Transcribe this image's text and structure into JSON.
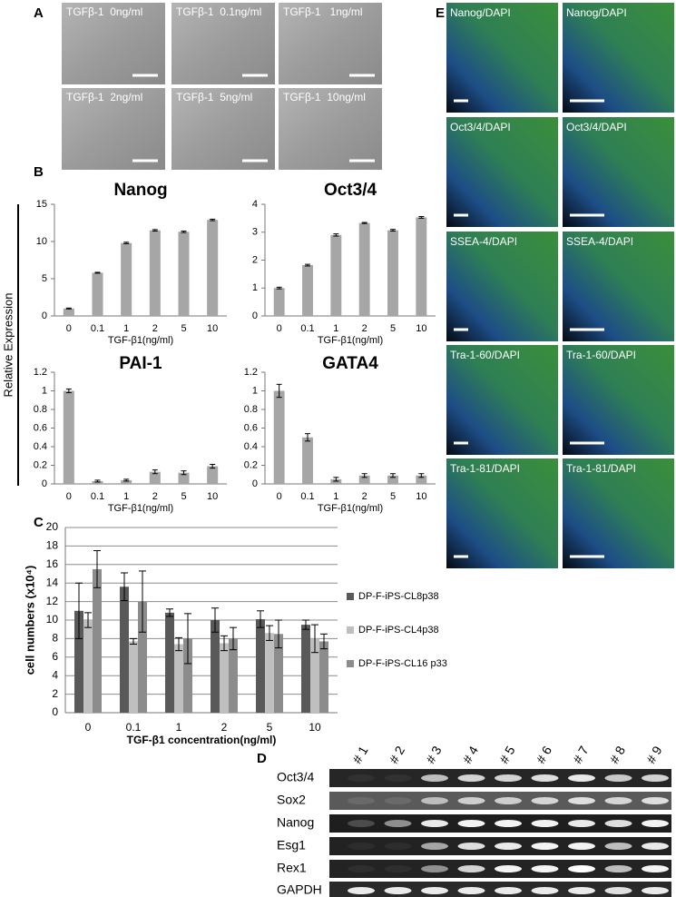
{
  "panel_labels": [
    "A",
    "B",
    "C",
    "D",
    "E"
  ],
  "panel_a": {
    "images": [
      "TGFβ-1  0ng/ml",
      "TGFβ-1  0.1ng/ml",
      "TGFβ-1   1ng/ml",
      "TGFβ-1  2ng/ml",
      "TGFβ-1  5ng/ml",
      "TGFβ-1  10ng/ml"
    ]
  },
  "panel_b": {
    "y_label": "Relative Expression"
  },
  "chart_data": [
    {
      "type": "bar",
      "title": "Nanog",
      "categories": [
        "0",
        "0.1",
        "1",
        "2",
        "5",
        "10"
      ],
      "values": [
        1.0,
        5.8,
        9.8,
        11.5,
        11.3,
        12.9
      ],
      "errors": [
        0.06,
        0.06,
        0.1,
        0.1,
        0.1,
        0.1
      ],
      "color": "#a6a6a6",
      "ylim": [
        0,
        15
      ],
      "yticks": [
        0,
        5,
        10,
        15
      ],
      "x_label": "TGF-β1(ng/ml)",
      "grid": false
    },
    {
      "type": "bar",
      "title": "Oct3/4",
      "categories": [
        "0",
        "0.1",
        "1",
        "2",
        "5",
        "10"
      ],
      "values": [
        1.0,
        1.82,
        2.9,
        3.33,
        3.07,
        3.53
      ],
      "errors": [
        0.03,
        0.03,
        0.04,
        0.02,
        0.03,
        0.03
      ],
      "color": "#a6a6a6",
      "ylim": [
        0,
        4
      ],
      "yticks": [
        0,
        1,
        2,
        3,
        4
      ],
      "x_label": "TGF-β1(ng/ml)",
      "grid": false
    },
    {
      "type": "bar",
      "title": "PAI-1",
      "categories": [
        "0",
        "0.1",
        "1",
        "2",
        "5",
        "10"
      ],
      "values": [
        1.0,
        0.03,
        0.04,
        0.13,
        0.12,
        0.19
      ],
      "errors": [
        0.02,
        0.01,
        0.01,
        0.02,
        0.02,
        0.02
      ],
      "color": "#a6a6a6",
      "ylim": [
        0,
        1.2
      ],
      "yticks": [
        0,
        0.2,
        0.4,
        0.6,
        0.8,
        1,
        1.2
      ],
      "x_label": "TGF-β1(ng/ml)",
      "grid": false
    },
    {
      "type": "bar",
      "title": "GATA4",
      "categories": [
        "0",
        "0.1",
        "1",
        "2",
        "5",
        "10"
      ],
      "values": [
        1.0,
        0.5,
        0.05,
        0.09,
        0.09,
        0.09
      ],
      "errors": [
        0.07,
        0.04,
        0.02,
        0.02,
        0.02,
        0.02
      ],
      "color": "#a6a6a6",
      "ylim": [
        0,
        1.2
      ],
      "yticks": [
        0,
        0.2,
        0.4,
        0.6,
        0.8,
        1,
        1.2
      ],
      "x_label": "TGF-β1(ng/ml)",
      "grid": false
    },
    {
      "type": "grouped_bar",
      "y_label": "cell numbers (x10⁴)",
      "x_label": "TGF-β1 concentration(ng/ml)",
      "categories": [
        "0",
        "0.1",
        "1",
        "2",
        "5",
        "10"
      ],
      "series": [
        {
          "name": "DP-F-iPS-CL8p38",
          "color": "#595959",
          "values": [
            11,
            13.6,
            10.8,
            10,
            10.1,
            9.5
          ],
          "errors": [
            3,
            1.5,
            0.4,
            1.3,
            0.9,
            0.5
          ]
        },
        {
          "name": "DP-F-iPS-CL4p38",
          "color": "#bfbfbf",
          "values": [
            10,
            7.7,
            7.4,
            7.5,
            8.6,
            8
          ],
          "errors": [
            0.8,
            0.3,
            0.7,
            0.8,
            0.8,
            1.5
          ]
        },
        {
          "name": "DP-F-iPS-CL16 p33",
          "color": "#8c8c8c",
          "values": [
            15.5,
            12,
            8,
            8,
            8.5,
            7.7
          ],
          "errors": [
            2,
            3.3,
            2.7,
            1.2,
            1.5,
            0.8
          ]
        }
      ],
      "ylim": [
        0,
        20
      ],
      "yticks": [
        0,
        2,
        4,
        6,
        8,
        10,
        12,
        14,
        16,
        18,
        20
      ],
      "grid": true
    }
  ],
  "panel_d": {
    "lanes": [
      "# 1",
      "# 2",
      "# 3",
      "# 4",
      "# 5",
      "# 6",
      "# 7",
      "# 8",
      "# 9"
    ],
    "rows": [
      "Oct3/4",
      "Sox2",
      "Nanog",
      "Esg1",
      "Rex1",
      "GAPDH"
    ]
  },
  "panel_e": {
    "images": [
      "Nanog/DAPI",
      "Nanog/DAPI",
      "Oct3/4/DAPI",
      "Oct3/4/DAPI",
      "SSEA-4/DAPI",
      "SSEA-4/DAPI",
      "Tra-1-60/DAPI",
      "Tra-1-60/DAPI",
      "Tra-1-81/DAPI",
      "Tra-1-81/DAPI"
    ]
  }
}
